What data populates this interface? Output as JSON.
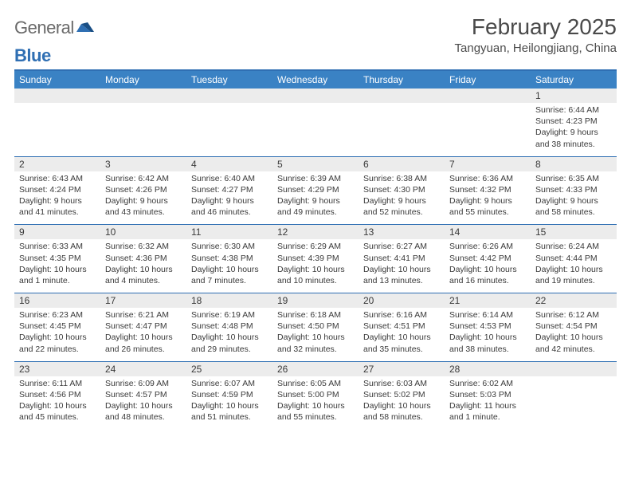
{
  "brand": {
    "word1": "General",
    "word2": "Blue"
  },
  "header": {
    "month_title": "February 2025",
    "location": "Tangyuan, Heilongjiang, China"
  },
  "colors": {
    "accent": "#2f6fb3",
    "header_row": "#3a82c4",
    "daynum_bg": "#ececec",
    "text": "#3a3a3a",
    "bg": "#ffffff"
  },
  "weekdays": [
    "Sunday",
    "Monday",
    "Tuesday",
    "Wednesday",
    "Thursday",
    "Friday",
    "Saturday"
  ],
  "rows": [
    [
      null,
      null,
      null,
      null,
      null,
      null,
      {
        "n": "1",
        "sunrise": "6:44 AM",
        "sunset": "4:23 PM",
        "daylight": "9 hours and 38 minutes."
      }
    ],
    [
      {
        "n": "2",
        "sunrise": "6:43 AM",
        "sunset": "4:24 PM",
        "daylight": "9 hours and 41 minutes."
      },
      {
        "n": "3",
        "sunrise": "6:42 AM",
        "sunset": "4:26 PM",
        "daylight": "9 hours and 43 minutes."
      },
      {
        "n": "4",
        "sunrise": "6:40 AM",
        "sunset": "4:27 PM",
        "daylight": "9 hours and 46 minutes."
      },
      {
        "n": "5",
        "sunrise": "6:39 AM",
        "sunset": "4:29 PM",
        "daylight": "9 hours and 49 minutes."
      },
      {
        "n": "6",
        "sunrise": "6:38 AM",
        "sunset": "4:30 PM",
        "daylight": "9 hours and 52 minutes."
      },
      {
        "n": "7",
        "sunrise": "6:36 AM",
        "sunset": "4:32 PM",
        "daylight": "9 hours and 55 minutes."
      },
      {
        "n": "8",
        "sunrise": "6:35 AM",
        "sunset": "4:33 PM",
        "daylight": "9 hours and 58 minutes."
      }
    ],
    [
      {
        "n": "9",
        "sunrise": "6:33 AM",
        "sunset": "4:35 PM",
        "daylight": "10 hours and 1 minute."
      },
      {
        "n": "10",
        "sunrise": "6:32 AM",
        "sunset": "4:36 PM",
        "daylight": "10 hours and 4 minutes."
      },
      {
        "n": "11",
        "sunrise": "6:30 AM",
        "sunset": "4:38 PM",
        "daylight": "10 hours and 7 minutes."
      },
      {
        "n": "12",
        "sunrise": "6:29 AM",
        "sunset": "4:39 PM",
        "daylight": "10 hours and 10 minutes."
      },
      {
        "n": "13",
        "sunrise": "6:27 AM",
        "sunset": "4:41 PM",
        "daylight": "10 hours and 13 minutes."
      },
      {
        "n": "14",
        "sunrise": "6:26 AM",
        "sunset": "4:42 PM",
        "daylight": "10 hours and 16 minutes."
      },
      {
        "n": "15",
        "sunrise": "6:24 AM",
        "sunset": "4:44 PM",
        "daylight": "10 hours and 19 minutes."
      }
    ],
    [
      {
        "n": "16",
        "sunrise": "6:23 AM",
        "sunset": "4:45 PM",
        "daylight": "10 hours and 22 minutes."
      },
      {
        "n": "17",
        "sunrise": "6:21 AM",
        "sunset": "4:47 PM",
        "daylight": "10 hours and 26 minutes."
      },
      {
        "n": "18",
        "sunrise": "6:19 AM",
        "sunset": "4:48 PM",
        "daylight": "10 hours and 29 minutes."
      },
      {
        "n": "19",
        "sunrise": "6:18 AM",
        "sunset": "4:50 PM",
        "daylight": "10 hours and 32 minutes."
      },
      {
        "n": "20",
        "sunrise": "6:16 AM",
        "sunset": "4:51 PM",
        "daylight": "10 hours and 35 minutes."
      },
      {
        "n": "21",
        "sunrise": "6:14 AM",
        "sunset": "4:53 PM",
        "daylight": "10 hours and 38 minutes."
      },
      {
        "n": "22",
        "sunrise": "6:12 AM",
        "sunset": "4:54 PM",
        "daylight": "10 hours and 42 minutes."
      }
    ],
    [
      {
        "n": "23",
        "sunrise": "6:11 AM",
        "sunset": "4:56 PM",
        "daylight": "10 hours and 45 minutes."
      },
      {
        "n": "24",
        "sunrise": "6:09 AM",
        "sunset": "4:57 PM",
        "daylight": "10 hours and 48 minutes."
      },
      {
        "n": "25",
        "sunrise": "6:07 AM",
        "sunset": "4:59 PM",
        "daylight": "10 hours and 51 minutes."
      },
      {
        "n": "26",
        "sunrise": "6:05 AM",
        "sunset": "5:00 PM",
        "daylight": "10 hours and 55 minutes."
      },
      {
        "n": "27",
        "sunrise": "6:03 AM",
        "sunset": "5:02 PM",
        "daylight": "10 hours and 58 minutes."
      },
      {
        "n": "28",
        "sunrise": "6:02 AM",
        "sunset": "5:03 PM",
        "daylight": "11 hours and 1 minute."
      },
      null
    ]
  ],
  "labels": {
    "sunrise": "Sunrise:",
    "sunset": "Sunset:",
    "daylight": "Daylight:"
  }
}
